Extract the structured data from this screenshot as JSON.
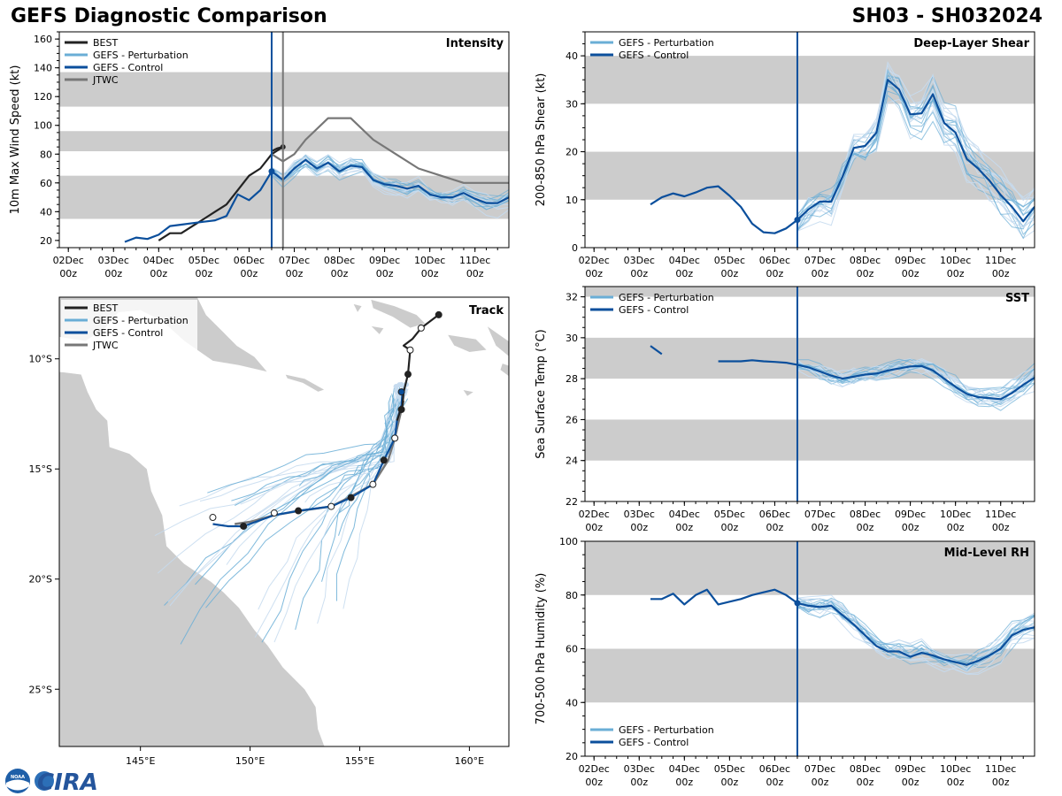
{
  "header": {
    "title_left": "GEFS Diagnostic Comparison",
    "title_right": "SH03 - SH032024"
  },
  "logo": {
    "text": "CIRA",
    "seal_text": "NOAA"
  },
  "colors": {
    "best": "#222222",
    "control": "#0b4f9c",
    "perturbation": "#6aaed6",
    "perturbation_light": "#c6dbef",
    "jtwc": "#777777",
    "band": "#cccccc",
    "land": "#cccccc"
  },
  "time_ticks": [
    {
      "day": 0,
      "date": "02Dec",
      "hour": "00z"
    },
    {
      "day": 1,
      "date": "03Dec",
      "hour": "00z"
    },
    {
      "day": 2,
      "date": "04Dec",
      "hour": "00z"
    },
    {
      "day": 3,
      "date": "05Dec",
      "hour": "00z"
    },
    {
      "day": 4,
      "date": "06Dec",
      "hour": "00z"
    },
    {
      "day": 5,
      "date": "07Dec",
      "hour": "00z"
    },
    {
      "day": 6,
      "date": "08Dec",
      "hour": "00z"
    },
    {
      "day": 7,
      "date": "09Dec",
      "hour": "00z"
    },
    {
      "day": 8,
      "date": "10Dec",
      "hour": "00z"
    },
    {
      "day": 9,
      "date": "11Dec",
      "hour": "00z"
    }
  ],
  "chart_data": [
    {
      "id": "intensity",
      "type": "line",
      "title": "Intensity",
      "ylabel": "10m Max Wind Speed (kt)",
      "xlim_days": [
        -0.2,
        9.75
      ],
      "ylim": [
        15,
        165
      ],
      "yticks": [
        20,
        40,
        60,
        80,
        100,
        120,
        140,
        160
      ],
      "bands": [
        [
          35,
          65
        ],
        [
          82,
          96
        ],
        [
          113,
          137
        ]
      ],
      "vlines": [
        {
          "day": 4.5,
          "color": "control"
        },
        {
          "day": 4.75,
          "color": "jtwc"
        }
      ],
      "legend": [
        "BEST",
        "GEFS - Perturbation",
        "GEFS - Control",
        "JTWC"
      ],
      "legend_position": "top-left",
      "series": [
        {
          "name": "BEST",
          "color": "best",
          "x": [
            2.0,
            2.25,
            2.5,
            2.75,
            3.0,
            3.25,
            3.5,
            3.75,
            4.0,
            4.25,
            4.5,
            4.75
          ],
          "y": [
            20,
            25,
            25,
            30,
            35,
            40,
            45,
            55,
            65,
            70,
            80,
            85
          ]
        },
        {
          "name": "BEST-post",
          "color": "best",
          "x": [
            4.5,
            4.62,
            4.75
          ],
          "y": [
            82,
            84,
            85
          ],
          "marker_end": true
        },
        {
          "name": "JTWC",
          "color": "jtwc",
          "x": [
            4.5,
            4.75,
            5.0,
            5.25,
            5.75,
            6.25,
            6.75,
            7.25,
            7.75,
            8.25,
            8.75,
            9.75
          ],
          "y": [
            80,
            75,
            80,
            90,
            105,
            105,
            90,
            80,
            70,
            65,
            60,
            60
          ]
        },
        {
          "name": "GEFS - Control",
          "color": "control",
          "x": [
            1.25,
            1.5,
            1.75,
            2.0,
            2.25,
            2.5,
            2.75,
            3.0,
            3.25,
            3.5,
            3.75,
            4.0,
            4.25,
            4.5,
            4.75,
            5.0,
            5.25,
            5.5,
            5.75,
            6.0,
            6.25,
            6.5,
            6.75,
            7.0,
            7.25,
            7.5,
            7.75,
            8.0,
            8.25,
            8.5,
            8.75,
            9.0,
            9.25,
            9.5,
            9.75
          ],
          "y": [
            19,
            22,
            21,
            24,
            30,
            31,
            32,
            33,
            34,
            37,
            52,
            48,
            55,
            68,
            62,
            70,
            76,
            70,
            74,
            68,
            72,
            71,
            62,
            59,
            58,
            56,
            58,
            52,
            50,
            50,
            53,
            49,
            46,
            46,
            50
          ]
        },
        {
          "name": "GEFS - Perturbation",
          "color": "perturbation",
          "spread": 7,
          "count": 20,
          "start_day": 4.5,
          "base": "GEFS - Control"
        }
      ],
      "markers": [
        {
          "day": 4.5,
          "value": 68,
          "color": "control"
        }
      ]
    },
    {
      "id": "shear",
      "type": "line",
      "title": "Deep-Layer Shear",
      "ylabel": "200-850 hPa Shear (kt)",
      "xlim_days": [
        -0.2,
        9.75
      ],
      "ylim": [
        0,
        45
      ],
      "yticks": [
        0,
        10,
        20,
        30,
        40
      ],
      "bands": [
        [
          10,
          20
        ],
        [
          30,
          40
        ]
      ],
      "vlines": [
        {
          "day": 4.5,
          "color": "control"
        }
      ],
      "legend": [
        "GEFS - Perturbation",
        "GEFS - Control"
      ],
      "legend_position": "top-left",
      "series": [
        {
          "name": "GEFS - Control",
          "color": "control",
          "x": [
            1.25,
            1.5,
            1.75,
            2.0,
            2.25,
            2.5,
            2.75,
            3.0,
            3.25,
            3.5,
            3.75,
            4.0,
            4.25,
            4.5,
            4.75,
            5.0,
            5.25,
            5.5,
            5.75,
            6.0,
            6.25,
            6.5,
            6.75,
            7.0,
            7.25,
            7.5,
            7.75,
            8.0,
            8.25,
            8.5,
            8.75,
            9.0,
            9.25,
            9.5,
            9.75
          ],
          "y": [
            9,
            10.5,
            11.3,
            10.7,
            11.5,
            12.5,
            12.8,
            10.8,
            8.5,
            5,
            3.2,
            3,
            4,
            5.8,
            8,
            9.6,
            9.6,
            14.8,
            20.8,
            21.2,
            24,
            35,
            33,
            27.8,
            28,
            32,
            26,
            24,
            18.5,
            16.5,
            14,
            11,
            8.5,
            5.5,
            8.5
          ]
        },
        {
          "name": "GEFS - Perturbation",
          "color": "perturbation",
          "spread": 5,
          "count": 20,
          "start_day": 4.5,
          "base": "GEFS - Control"
        }
      ],
      "markers": [
        {
          "day": 4.5,
          "value": 5.8,
          "color": "control"
        }
      ]
    },
    {
      "id": "sst",
      "type": "line",
      "title": "SST",
      "ylabel": "Sea Surface Temp (°C)",
      "xlim_days": [
        -0.2,
        9.75
      ],
      "ylim": [
        22,
        32.5
      ],
      "yticks": [
        22,
        24,
        26,
        28,
        30,
        32
      ],
      "bands": [
        [
          24,
          26
        ],
        [
          28,
          30
        ],
        [
          32,
          32.5
        ]
      ],
      "vlines": [
        {
          "day": 4.5,
          "color": "control"
        }
      ],
      "legend": [
        "GEFS - Perturbation",
        "GEFS - Control"
      ],
      "legend_position": "top-left",
      "series": [
        {
          "name": "GEFS - Control-a",
          "color": "control",
          "x": [
            1.25,
            1.5
          ],
          "y": [
            29.6,
            29.2
          ]
        },
        {
          "name": "GEFS - Control",
          "color": "control",
          "x": [
            2.75,
            3.0,
            3.25,
            3.5,
            3.75,
            4.0,
            4.25,
            4.5,
            4.75,
            5.0,
            5.25,
            5.5,
            5.75,
            6.0,
            6.25,
            6.5,
            6.75,
            7.0,
            7.25,
            7.5,
            7.75,
            8.0,
            8.25,
            8.5,
            8.75,
            9.0,
            9.25,
            9.5,
            9.75
          ],
          "y": [
            28.85,
            28.85,
            28.85,
            28.9,
            28.85,
            28.82,
            28.78,
            28.68,
            28.55,
            28.35,
            28.15,
            28.0,
            28.1,
            28.2,
            28.25,
            28.4,
            28.5,
            28.6,
            28.62,
            28.4,
            28.0,
            27.6,
            27.25,
            27.1,
            27.05,
            27.0,
            27.3,
            27.7,
            28.05
          ]
        },
        {
          "name": "GEFS - Perturbation",
          "color": "perturbation",
          "spread": 0.6,
          "count": 20,
          "start_day": 4.5,
          "base": "GEFS - Control"
        }
      ]
    },
    {
      "id": "rh",
      "type": "line",
      "title": "Mid-Level RH",
      "ylabel": "700-500 hPa Humidity (%)",
      "xlim_days": [
        -0.2,
        9.75
      ],
      "ylim": [
        20,
        100
      ],
      "yticks": [
        20,
        40,
        60,
        80,
        100
      ],
      "bands": [
        [
          40,
          60
        ],
        [
          80,
          100
        ]
      ],
      "vlines": [
        {
          "day": 4.5,
          "color": "control"
        }
      ],
      "legend": [
        "GEFS - Perturbation",
        "GEFS - Control"
      ],
      "legend_position": "bottom-left",
      "series": [
        {
          "name": "GEFS - Control",
          "color": "control",
          "x": [
            1.25,
            1.5,
            1.75,
            2.0,
            2.25,
            2.5,
            2.75,
            3.0,
            3.25,
            3.5,
            3.75,
            4.0,
            4.25,
            4.5,
            4.75,
            5.0,
            5.25,
            5.5,
            5.75,
            6.0,
            6.25,
            6.5,
            6.75,
            7.0,
            7.25,
            7.5,
            7.75,
            8.0,
            8.25,
            8.5,
            8.75,
            9.0,
            9.25,
            9.5,
            9.75
          ],
          "y": [
            78.5,
            78.5,
            80.5,
            76.5,
            80,
            82,
            76.5,
            77.5,
            78.5,
            80,
            81,
            82,
            80,
            77,
            76,
            75.5,
            76,
            72.5,
            69,
            65,
            61,
            59,
            59,
            57,
            58.5,
            57.5,
            56,
            55,
            54,
            55.5,
            57.5,
            60,
            65,
            67,
            68
          ]
        },
        {
          "name": "GEFS - Perturbation",
          "color": "perturbation",
          "spread": 5,
          "count": 20,
          "start_day": 4.5,
          "base": "GEFS - Control"
        }
      ],
      "markers": [
        {
          "day": 4.5,
          "value": 77,
          "color": "control"
        }
      ]
    },
    {
      "id": "track",
      "type": "line",
      "title": "Track",
      "xlim_lon": [
        141.3,
        161.8
      ],
      "ylim_lat": [
        -27.6,
        -7.2
      ],
      "lon_ticks": [
        {
          "v": 145,
          "label": "145°E"
        },
        {
          "v": 150,
          "label": "150°E"
        },
        {
          "v": 155,
          "label": "155°E"
        },
        {
          "v": 160,
          "label": "160°E"
        }
      ],
      "lat_ticks": [
        {
          "v": -10,
          "label": "10°S"
        },
        {
          "v": -15,
          "label": "15°S"
        },
        {
          "v": -20,
          "label": "20°S"
        },
        {
          "v": -25,
          "label": "25°S"
        }
      ],
      "legend": [
        "BEST",
        "GEFS - Perturbation",
        "GEFS - Control",
        "JTWC"
      ],
      "legend_position": "top-left",
      "best": {
        "lon": [
          158.6,
          157.8,
          157.4,
          157.0,
          157.3,
          157.2,
          157.0,
          156.95,
          156.8,
          156.7
        ],
        "lat": [
          -8.0,
          -8.6,
          -9.1,
          -9.4,
          -9.6,
          -10.7,
          -11.5,
          -12.1,
          -12.5,
          -12.8
        ]
      },
      "best_markers": [
        {
          "lon": 158.6,
          "lat": -8.0,
          "fill": true
        },
        {
          "lon": 157.8,
          "lat": -8.6,
          "fill": false
        },
        {
          "lon": 157.3,
          "lat": -9.6,
          "fill": false
        },
        {
          "lon": 157.2,
          "lat": -10.7,
          "fill": true
        },
        {
          "lon": 156.9,
          "lat": -12.3,
          "fill": true
        }
      ],
      "jtwc": {
        "lon": [
          157.0,
          156.6,
          156.3,
          155.6,
          154.5,
          153.7,
          152.3,
          151.1,
          150.0,
          149.3
        ],
        "lat": [
          -11.9,
          -13.6,
          -14.6,
          -15.7,
          -16.3,
          -16.7,
          -16.9,
          -17.1,
          -17.4,
          -17.5
        ]
      },
      "control": {
        "lon": [
          156.95,
          156.9,
          156.7,
          156.6,
          156.4,
          156.1,
          155.6,
          154.6,
          153.7,
          152.2,
          151.1,
          149.7,
          149.0,
          148.3
        ],
        "lat": [
          -11.5,
          -12.1,
          -12.8,
          -13.6,
          -14.0,
          -14.6,
          -15.7,
          -16.3,
          -16.7,
          -16.9,
          -17.1,
          -17.6,
          -17.6,
          -17.5
        ]
      },
      "control_markers": [
        {
          "lon": 156.9,
          "lat": -11.5,
          "fill": true,
          "color": "control"
        },
        {
          "lon": 156.6,
          "lat": -13.6,
          "fill": false
        },
        {
          "lon": 156.1,
          "lat": -14.6,
          "fill": true
        },
        {
          "lon": 155.6,
          "lat": -15.7,
          "fill": false
        },
        {
          "lon": 154.6,
          "lat": -16.3,
          "fill": true
        },
        {
          "lon": 153.7,
          "lat": -16.7,
          "fill": false
        },
        {
          "lon": 152.2,
          "lat": -16.9,
          "fill": true
        },
        {
          "lon": 151.1,
          "lat": -17.0,
          "fill": false
        },
        {
          "lon": 149.7,
          "lat": -17.6,
          "fill": true
        },
        {
          "lon": 148.3,
          "lat": -17.2,
          "fill": false
        }
      ],
      "perturbation_count": 30
    }
  ]
}
